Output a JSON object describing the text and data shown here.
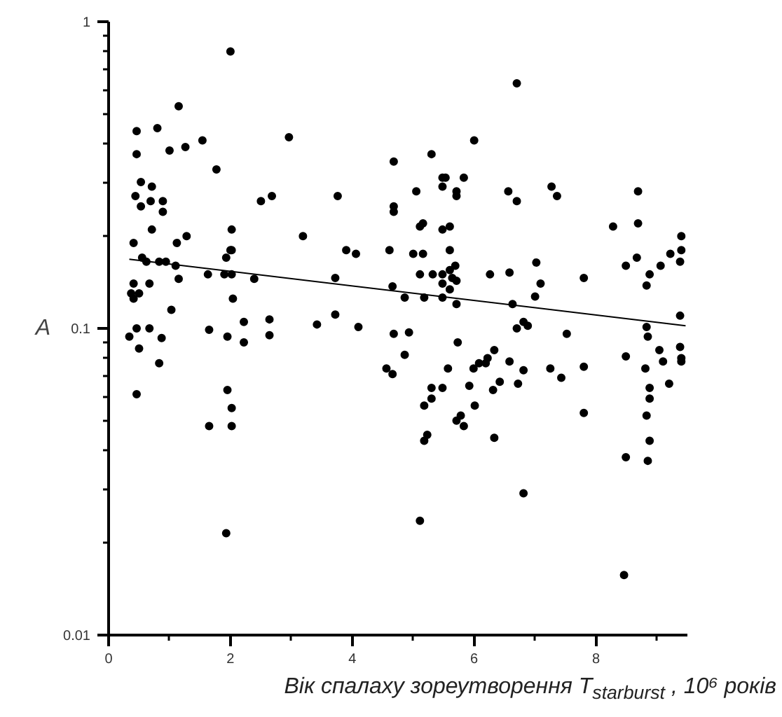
{
  "chart_data": {
    "type": "scatter",
    "xlabel": "Вік спалаху зореутворення T$_{starburst}$ , 10⁶ років",
    "ylabel": "A",
    "log": "y",
    "xlim": [
      0,
      9.5
    ],
    "ylim": [
      0.01,
      1
    ],
    "xticks": [
      0,
      {
        "value": 1,
        "label": null
      },
      2,
      {
        "value": 3,
        "label": null
      },
      4,
      {
        "value": 5,
        "label": null
      },
      6,
      {
        "value": 7,
        "label": null
      },
      8,
      {
        "value": 9,
        "label": null
      }
    ],
    "yticks": [
      0.01,
      {
        "value": 0.02,
        "label": null
      },
      {
        "value": 0.03,
        "label": null
      },
      {
        "value": 0.04,
        "label": null
      },
      {
        "value": 0.05,
        "label": null
      },
      {
        "value": 0.06,
        "label": null
      },
      {
        "value": 0.07,
        "label": null
      },
      {
        "value": 0.08,
        "label": null
      },
      {
        "value": 0.09,
        "label": null
      },
      0.1,
      {
        "value": 0.2,
        "label": null
      },
      {
        "value": 0.3,
        "label": null
      },
      {
        "value": 0.4,
        "label": null
      },
      {
        "value": 0.5,
        "label": null
      },
      {
        "value": 0.6,
        "label": null
      },
      {
        "value": 0.7,
        "label": null
      },
      {
        "value": 0.8,
        "label": null
      },
      {
        "value": 0.9,
        "label": null
      },
      1
    ],
    "series": [
      {
        "color": "#000000",
        "marker": "circle",
        "x": [
          2.0,
          1.15,
          0.46,
          0.8,
          0.46,
          1.0,
          1.26,
          1.54,
          1.77,
          0.53,
          0.44,
          0.71,
          0.69,
          0.89,
          0.53,
          0.89,
          2.5,
          2.68,
          0.71,
          1.28,
          2.02,
          0.41,
          1.12,
          0.55,
          1.93,
          2.0,
          2.02,
          0.62,
          0.83,
          0.94,
          1.1,
          1.63,
          1.9,
          2.02,
          2.39,
          1.15,
          0.41,
          0.67,
          0.37,
          0.5,
          0.41,
          2.04,
          1.03,
          2.22,
          2.64,
          2.64,
          0.46,
          0.67,
          0.34,
          0.87,
          1.65,
          1.95,
          2.22,
          0.5,
          0.83,
          0.46,
          1.95,
          2.02,
          1.65,
          2.02,
          1.93,
          6.7,
          2.96,
          6.0,
          5.3,
          4.68,
          5.48,
          5.53,
          5.83,
          3.76,
          5.05,
          5.48,
          5.71,
          5.71,
          6.56,
          6.7,
          4.68,
          4.68,
          5.16,
          5.11,
          5.48,
          5.6,
          3.19,
          3.9,
          4.06,
          4.61,
          5.0,
          5.16,
          5.6,
          5.69,
          5.11,
          5.32,
          5.48,
          5.6,
          5.64,
          5.71,
          5.48,
          5.6,
          6.26,
          6.58,
          3.72,
          4.66,
          4.86,
          5.18,
          5.48,
          5.71,
          6.63,
          3.42,
          3.72,
          4.1,
          4.68,
          4.93,
          4.86,
          4.56,
          4.66,
          5.73,
          5.57,
          5.99,
          6.08,
          6.19,
          6.22,
          6.33,
          6.58,
          6.81,
          6.7,
          6.81,
          6.88,
          5.92,
          6.42,
          6.31,
          6.72,
          5.3,
          5.48,
          5.3,
          5.18,
          6.01,
          5.78,
          5.71,
          5.83,
          5.23,
          5.18,
          6.33,
          6.81,
          5.11,
          7.27,
          7.36,
          8.69,
          8.28,
          8.69,
          9.4,
          9.4,
          9.22,
          8.67,
          9.38,
          9.06,
          8.49,
          8.88,
          8.83,
          7.02,
          7.09,
          7.8,
          7.0,
          9.38,
          7.52,
          8.83,
          8.85,
          9.38,
          9.04,
          9.4,
          9.4,
          9.1,
          8.49,
          8.81,
          7.8,
          7.25,
          7.43,
          9.2,
          8.88,
          8.88,
          7.8,
          8.83,
          8.88,
          8.49,
          8.85,
          8.46
        ],
        "values": [
          0.8,
          0.53,
          0.44,
          0.45,
          0.37,
          0.38,
          0.39,
          0.41,
          0.33,
          0.3,
          0.27,
          0.29,
          0.26,
          0.26,
          0.25,
          0.24,
          0.26,
          0.27,
          0.21,
          0.2,
          0.21,
          0.19,
          0.19,
          0.17,
          0.17,
          0.18,
          0.18,
          0.165,
          0.165,
          0.165,
          0.16,
          0.15,
          0.15,
          0.15,
          0.145,
          0.145,
          0.14,
          0.14,
          0.13,
          0.13,
          0.125,
          0.125,
          0.115,
          0.105,
          0.107,
          0.095,
          0.1,
          0.1,
          0.094,
          0.093,
          0.099,
          0.094,
          0.09,
          0.086,
          0.077,
          0.061,
          0.063,
          0.055,
          0.048,
          0.048,
          0.0215,
          0.63,
          0.42,
          0.41,
          0.37,
          0.35,
          0.31,
          0.31,
          0.31,
          0.27,
          0.28,
          0.29,
          0.28,
          0.27,
          0.28,
          0.26,
          0.25,
          0.24,
          0.22,
          0.215,
          0.21,
          0.215,
          0.2,
          0.18,
          0.175,
          0.18,
          0.175,
          0.175,
          0.18,
          0.16,
          0.15,
          0.15,
          0.15,
          0.155,
          0.146,
          0.143,
          0.14,
          0.134,
          0.15,
          0.152,
          0.146,
          0.137,
          0.126,
          0.126,
          0.126,
          0.12,
          0.12,
          0.103,
          0.111,
          0.101,
          0.096,
          0.097,
          0.082,
          0.074,
          0.071,
          0.09,
          0.074,
          0.074,
          0.077,
          0.077,
          0.08,
          0.085,
          0.078,
          0.073,
          0.1,
          0.105,
          0.102,
          0.065,
          0.067,
          0.063,
          0.066,
          0.064,
          0.064,
          0.059,
          0.056,
          0.056,
          0.052,
          0.05,
          0.048,
          0.045,
          0.043,
          0.044,
          0.029,
          0.0236,
          0.29,
          0.27,
          0.28,
          0.215,
          0.22,
          0.2,
          0.18,
          0.175,
          0.17,
          0.165,
          0.16,
          0.16,
          0.15,
          0.138,
          0.164,
          0.14,
          0.146,
          0.127,
          0.11,
          0.096,
          0.101,
          0.094,
          0.087,
          0.085,
          0.08,
          0.078,
          0.078,
          0.081,
          0.074,
          0.075,
          0.074,
          0.069,
          0.066,
          0.064,
          0.059,
          0.053,
          0.052,
          0.043,
          0.038,
          0.037,
          0.0157
        ]
      },
      {
        "type": "line",
        "marker": "none",
        "color": "#000000",
        "x": [
          0.34,
          9.47
        ],
        "values": [
          0.168,
          0.102
        ]
      }
    ]
  }
}
